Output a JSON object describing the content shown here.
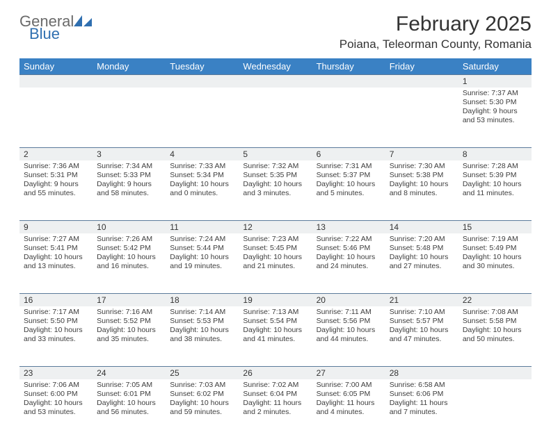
{
  "brand": {
    "line1": "General",
    "line2": "Blue"
  },
  "title": "February 2025",
  "location": "Poiana, Teleorman County, Romania",
  "colors": {
    "header_bg": "#3a81c4",
    "header_text": "#ffffff",
    "daynum_bg": "#eef0f1",
    "daynum_border": "#5a7a9a",
    "body_text": "#3d3d3d",
    "brand_gray": "#6a6a6a",
    "brand_blue": "#2f6fb0"
  },
  "days_of_week": [
    "Sunday",
    "Monday",
    "Tuesday",
    "Wednesday",
    "Thursday",
    "Friday",
    "Saturday"
  ],
  "weeks": [
    [
      null,
      null,
      null,
      null,
      null,
      null,
      {
        "n": "1",
        "sr": "Sunrise: 7:37 AM",
        "ss": "Sunset: 5:30 PM",
        "d1": "Daylight: 9 hours",
        "d2": "and 53 minutes."
      }
    ],
    [
      {
        "n": "2",
        "sr": "Sunrise: 7:36 AM",
        "ss": "Sunset: 5:31 PM",
        "d1": "Daylight: 9 hours",
        "d2": "and 55 minutes."
      },
      {
        "n": "3",
        "sr": "Sunrise: 7:34 AM",
        "ss": "Sunset: 5:33 PM",
        "d1": "Daylight: 9 hours",
        "d2": "and 58 minutes."
      },
      {
        "n": "4",
        "sr": "Sunrise: 7:33 AM",
        "ss": "Sunset: 5:34 PM",
        "d1": "Daylight: 10 hours",
        "d2": "and 0 minutes."
      },
      {
        "n": "5",
        "sr": "Sunrise: 7:32 AM",
        "ss": "Sunset: 5:35 PM",
        "d1": "Daylight: 10 hours",
        "d2": "and 3 minutes."
      },
      {
        "n": "6",
        "sr": "Sunrise: 7:31 AM",
        "ss": "Sunset: 5:37 PM",
        "d1": "Daylight: 10 hours",
        "d2": "and 5 minutes."
      },
      {
        "n": "7",
        "sr": "Sunrise: 7:30 AM",
        "ss": "Sunset: 5:38 PM",
        "d1": "Daylight: 10 hours",
        "d2": "and 8 minutes."
      },
      {
        "n": "8",
        "sr": "Sunrise: 7:28 AM",
        "ss": "Sunset: 5:39 PM",
        "d1": "Daylight: 10 hours",
        "d2": "and 11 minutes."
      }
    ],
    [
      {
        "n": "9",
        "sr": "Sunrise: 7:27 AM",
        "ss": "Sunset: 5:41 PM",
        "d1": "Daylight: 10 hours",
        "d2": "and 13 minutes."
      },
      {
        "n": "10",
        "sr": "Sunrise: 7:26 AM",
        "ss": "Sunset: 5:42 PM",
        "d1": "Daylight: 10 hours",
        "d2": "and 16 minutes."
      },
      {
        "n": "11",
        "sr": "Sunrise: 7:24 AM",
        "ss": "Sunset: 5:44 PM",
        "d1": "Daylight: 10 hours",
        "d2": "and 19 minutes."
      },
      {
        "n": "12",
        "sr": "Sunrise: 7:23 AM",
        "ss": "Sunset: 5:45 PM",
        "d1": "Daylight: 10 hours",
        "d2": "and 21 minutes."
      },
      {
        "n": "13",
        "sr": "Sunrise: 7:22 AM",
        "ss": "Sunset: 5:46 PM",
        "d1": "Daylight: 10 hours",
        "d2": "and 24 minutes."
      },
      {
        "n": "14",
        "sr": "Sunrise: 7:20 AM",
        "ss": "Sunset: 5:48 PM",
        "d1": "Daylight: 10 hours",
        "d2": "and 27 minutes."
      },
      {
        "n": "15",
        "sr": "Sunrise: 7:19 AM",
        "ss": "Sunset: 5:49 PM",
        "d1": "Daylight: 10 hours",
        "d2": "and 30 minutes."
      }
    ],
    [
      {
        "n": "16",
        "sr": "Sunrise: 7:17 AM",
        "ss": "Sunset: 5:50 PM",
        "d1": "Daylight: 10 hours",
        "d2": "and 33 minutes."
      },
      {
        "n": "17",
        "sr": "Sunrise: 7:16 AM",
        "ss": "Sunset: 5:52 PM",
        "d1": "Daylight: 10 hours",
        "d2": "and 35 minutes."
      },
      {
        "n": "18",
        "sr": "Sunrise: 7:14 AM",
        "ss": "Sunset: 5:53 PM",
        "d1": "Daylight: 10 hours",
        "d2": "and 38 minutes."
      },
      {
        "n": "19",
        "sr": "Sunrise: 7:13 AM",
        "ss": "Sunset: 5:54 PM",
        "d1": "Daylight: 10 hours",
        "d2": "and 41 minutes."
      },
      {
        "n": "20",
        "sr": "Sunrise: 7:11 AM",
        "ss": "Sunset: 5:56 PM",
        "d1": "Daylight: 10 hours",
        "d2": "and 44 minutes."
      },
      {
        "n": "21",
        "sr": "Sunrise: 7:10 AM",
        "ss": "Sunset: 5:57 PM",
        "d1": "Daylight: 10 hours",
        "d2": "and 47 minutes."
      },
      {
        "n": "22",
        "sr": "Sunrise: 7:08 AM",
        "ss": "Sunset: 5:58 PM",
        "d1": "Daylight: 10 hours",
        "d2": "and 50 minutes."
      }
    ],
    [
      {
        "n": "23",
        "sr": "Sunrise: 7:06 AM",
        "ss": "Sunset: 6:00 PM",
        "d1": "Daylight: 10 hours",
        "d2": "and 53 minutes."
      },
      {
        "n": "24",
        "sr": "Sunrise: 7:05 AM",
        "ss": "Sunset: 6:01 PM",
        "d1": "Daylight: 10 hours",
        "d2": "and 56 minutes."
      },
      {
        "n": "25",
        "sr": "Sunrise: 7:03 AM",
        "ss": "Sunset: 6:02 PM",
        "d1": "Daylight: 10 hours",
        "d2": "and 59 minutes."
      },
      {
        "n": "26",
        "sr": "Sunrise: 7:02 AM",
        "ss": "Sunset: 6:04 PM",
        "d1": "Daylight: 11 hours",
        "d2": "and 2 minutes."
      },
      {
        "n": "27",
        "sr": "Sunrise: 7:00 AM",
        "ss": "Sunset: 6:05 PM",
        "d1": "Daylight: 11 hours",
        "d2": "and 4 minutes."
      },
      {
        "n": "28",
        "sr": "Sunrise: 6:58 AM",
        "ss": "Sunset: 6:06 PM",
        "d1": "Daylight: 11 hours",
        "d2": "and 7 minutes."
      },
      null
    ]
  ]
}
